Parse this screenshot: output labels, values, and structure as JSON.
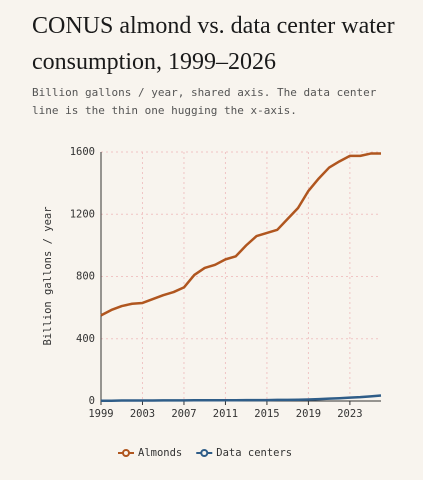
{
  "chart_data": {
    "type": "line",
    "title": "CONUS almond vs. data center water consumption, 1999–2026",
    "subtitle": "Billion gallons / year, shared axis. The data center line is the thin one hugging the x-axis.",
    "y_label": "Billion gallons / year",
    "x": [
      1999,
      2000,
      2001,
      2002,
      2003,
      2004,
      2005,
      2006,
      2007,
      2008,
      2009,
      2010,
      2011,
      2012,
      2013,
      2014,
      2015,
      2016,
      2017,
      2018,
      2019,
      2020,
      2021,
      2022,
      2023,
      2024,
      2025,
      2026
    ],
    "series": [
      {
        "name": "Almonds",
        "color": "#b0561f",
        "width": 2.5,
        "values": [
          550,
          585,
          610,
          625,
          630,
          655,
          680,
          700,
          730,
          810,
          855,
          875,
          910,
          930,
          1000,
          1060,
          1080,
          1100,
          1170,
          1240,
          1350,
          1430,
          1500,
          1540,
          1575,
          1575,
          1590,
          1590
        ]
      },
      {
        "name": "Data centers",
        "color": "#2f5d88",
        "width": 2.5,
        "values": [
          2,
          2,
          3,
          3,
          3,
          3,
          4,
          4,
          4,
          5,
          5,
          5,
          5,
          5,
          6,
          6,
          6,
          7,
          7,
          8,
          10,
          12,
          15,
          18,
          22,
          25,
          30,
          35
        ]
      }
    ],
    "xlim": [
      1999,
      2026
    ],
    "xticks": [
      1999,
      2003,
      2007,
      2011,
      2015,
      2019,
      2023
    ],
    "ylim": [
      0,
      1600
    ],
    "yticks": [
      0,
      400,
      800,
      1200,
      1600
    ],
    "grid": true,
    "legend": "bottom"
  }
}
